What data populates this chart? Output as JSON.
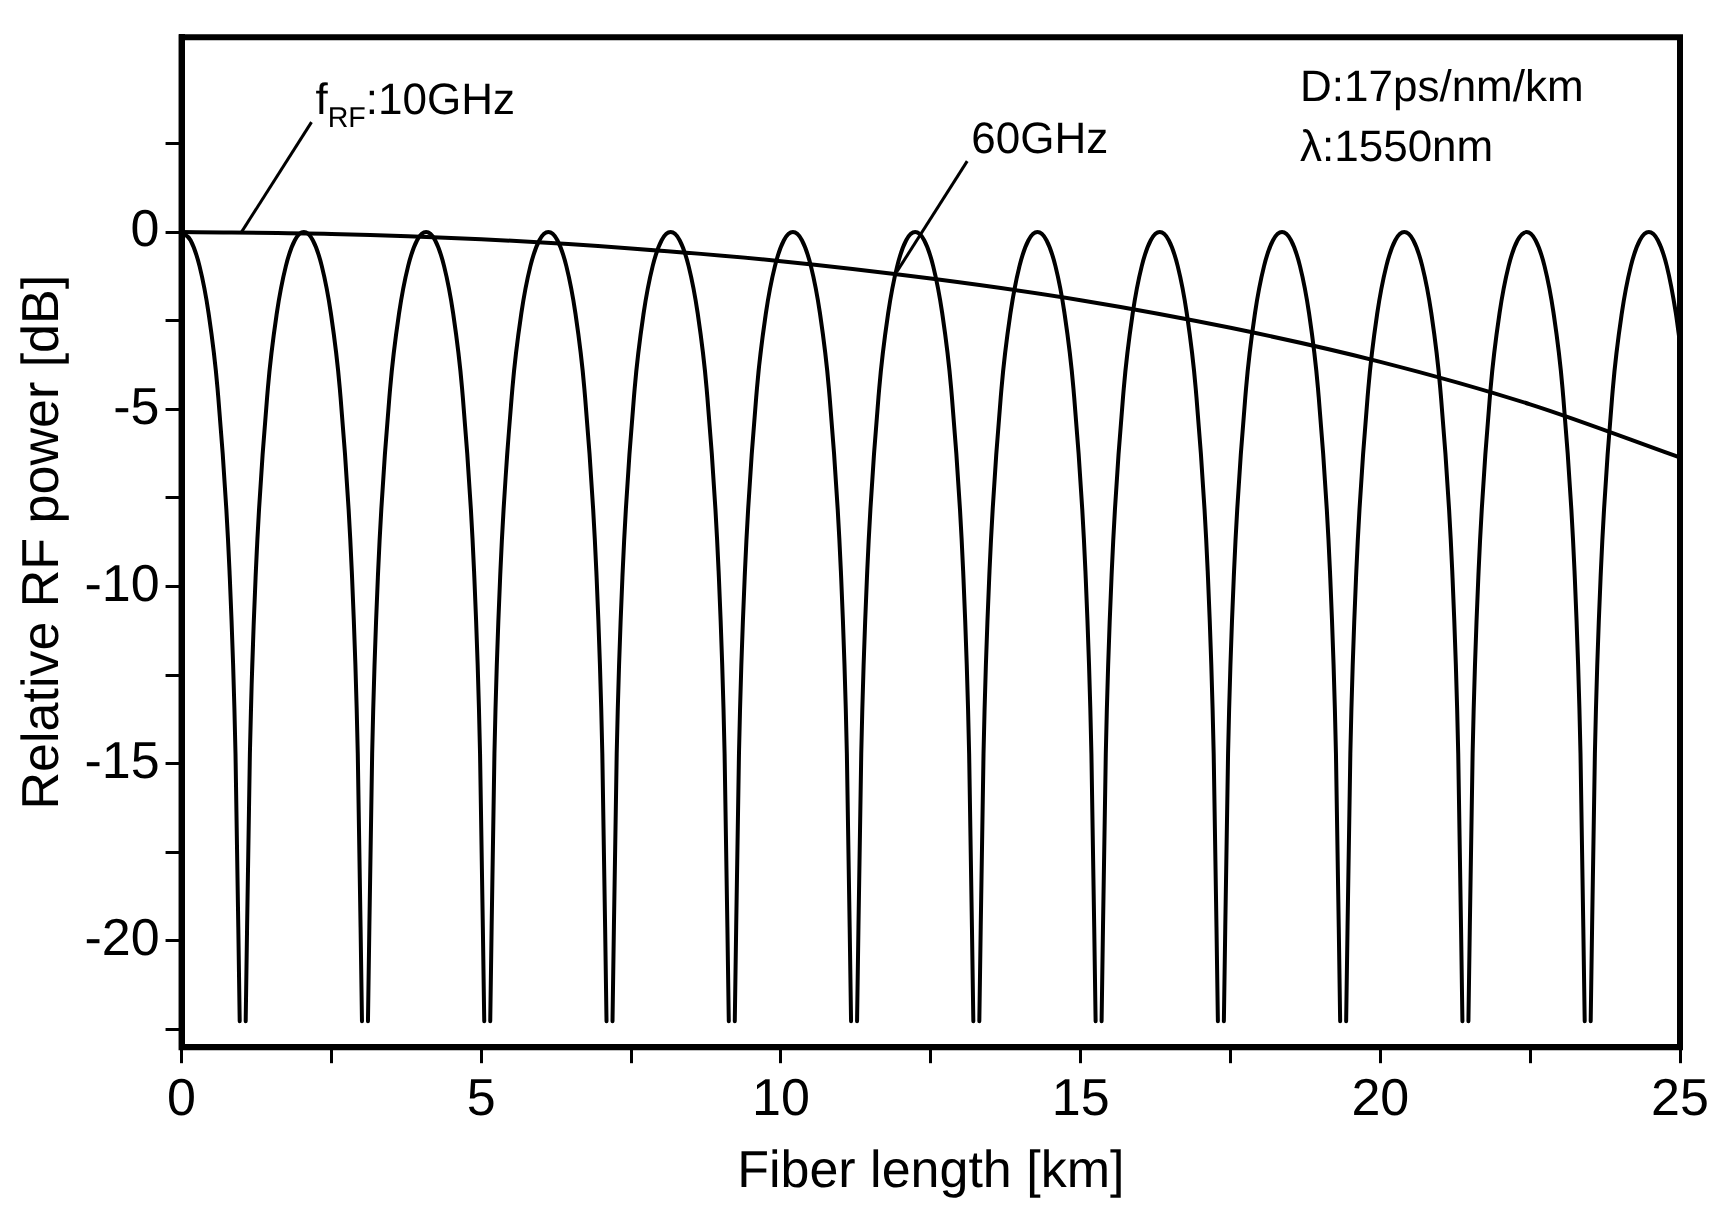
{
  "chart_data": {
    "type": "line",
    "xlabel": "Fiber length [km]",
    "ylabel": "Relative RF power [dB]",
    "xlim": [
      0,
      25
    ],
    "ylim": [
      -23,
      5.5
    ],
    "xticks": [
      0,
      {
        "value": 2.5,
        "label": null
      },
      5,
      {
        "value": 7.5,
        "label": null
      },
      10,
      {
        "value": 12.5,
        "label": null
      },
      15,
      {
        "value": 17.5,
        "label": null
      },
      20,
      {
        "value": 22.5,
        "label": null
      },
      25
    ],
    "yticks": [
      {
        "value": -22.5,
        "label": null
      },
      -20,
      {
        "value": -17.5,
        "label": null
      },
      -15,
      {
        "value": -12.5,
        "label": null
      },
      -10,
      {
        "value": -7.5,
        "label": null
      },
      -5,
      {
        "value": -2.5,
        "label": null
      },
      0,
      {
        "value": 2.5,
        "label": null
      }
    ],
    "marker": "none",
    "line_style": "solid",
    "grid": false,
    "legend": false,
    "series": [
      {
        "color": "#000000",
        "x": [
          0,
          2.5,
          5,
          7.5,
          10,
          12.5,
          15,
          17.5,
          20,
          22.5,
          25
        ],
        "values": [
          0,
          -0.05,
          -0.2,
          -0.46,
          -0.82,
          -1.31,
          -1.92,
          -2.7,
          -3.66,
          -4.86,
          -6.36
        ]
      },
      {
        "color": "#000000",
        "x": [
          0,
          0.15,
          0.3,
          0.45,
          0.6,
          0.8,
          0.9,
          0.97,
          1.02,
          1.07,
          1.14,
          1.24,
          1.44,
          1.59,
          1.74,
          1.89,
          2.04,
          2.19,
          2.34,
          2.49,
          2.64,
          2.84,
          2.94,
          3.01,
          3.06,
          3.11,
          3.18,
          3.28,
          3.48,
          3.63,
          3.78,
          3.93,
          4.08,
          4.23,
          4.38,
          4.53,
          4.68,
          4.88,
          4.98,
          5.05,
          5.1,
          5.15,
          5.22,
          5.32,
          5.52,
          5.67,
          5.82,
          5.97,
          6.12,
          6.27,
          6.42,
          6.57,
          6.72,
          6.92,
          7.02,
          7.09,
          7.14,
          7.19,
          7.26,
          7.36,
          7.56,
          7.71,
          7.86,
          8.01,
          8.16,
          8.31,
          8.46,
          8.61,
          8.76,
          8.96,
          9.06,
          9.13,
          9.18,
          9.23,
          9.3,
          9.4,
          9.6,
          9.75,
          9.9,
          10.05,
          10.2,
          10.35,
          10.5,
          10.65,
          10.8,
          11.0,
          11.1,
          11.17,
          11.22,
          11.27,
          11.34,
          11.44,
          11.64,
          11.79,
          11.94,
          12.09,
          12.24,
          12.39,
          12.54,
          12.69,
          12.84,
          13.04,
          13.14,
          13.21,
          13.26,
          13.31,
          13.38,
          13.48,
          13.68,
          13.83,
          13.98,
          14.13,
          14.28,
          14.43,
          14.58,
          14.73,
          14.88,
          15.08,
          15.18,
          15.25,
          15.3,
          15.35,
          15.42,
          15.52,
          15.72,
          15.87,
          16.02,
          16.17,
          16.32,
          16.47,
          16.62,
          16.77,
          16.92,
          17.12,
          17.22,
          17.29,
          17.34,
          17.39,
          17.46,
          17.56,
          17.76,
          17.91,
          18.06,
          18.21,
          18.36,
          18.51,
          18.66,
          18.81,
          18.96,
          19.16,
          19.26,
          19.33,
          19.38,
          19.43,
          19.5,
          19.6,
          19.8,
          19.95,
          20.1,
          20.25,
          20.4,
          20.55,
          20.7,
          20.85,
          21.0,
          21.2,
          21.3,
          21.37,
          21.42,
          21.47,
          21.54,
          21.64,
          21.84,
          21.99,
          22.14,
          22.29,
          22.44,
          22.59,
          22.74,
          22.89,
          23.04,
          23.24,
          23.34,
          23.41,
          23.46,
          23.51,
          23.58,
          23.68,
          23.88,
          24.03,
          24.18,
          24.33,
          24.48,
          24.63,
          24.78,
          24.93,
          25
        ],
        "values": [
          0,
          -0.23,
          -0.96,
          -2.28,
          -4.41,
          -9.56,
          -14.72,
          -22.27,
          null,
          -22.27,
          -14.72,
          -9.56,
          -4.41,
          -2.28,
          -0.96,
          -0.23,
          0,
          -0.23,
          -0.96,
          -2.28,
          -4.41,
          -9.56,
          -14.72,
          -22.27,
          null,
          -22.27,
          -14.72,
          -9.56,
          -4.41,
          -2.28,
          -0.96,
          -0.23,
          0,
          -0.23,
          -0.96,
          -2.28,
          -4.41,
          -9.56,
          -14.72,
          -22.27,
          null,
          -22.27,
          -14.72,
          -9.56,
          -4.41,
          -2.28,
          -0.96,
          -0.23,
          0,
          -0.23,
          -0.96,
          -2.28,
          -4.41,
          -9.56,
          -14.72,
          -22.27,
          null,
          -22.27,
          -14.72,
          -9.56,
          -4.41,
          -2.28,
          -0.96,
          -0.23,
          0,
          -0.23,
          -0.96,
          -2.28,
          -4.41,
          -9.56,
          -14.72,
          -22.27,
          null,
          -22.27,
          -14.72,
          -9.56,
          -4.41,
          -2.28,
          -0.96,
          -0.23,
          0,
          -0.23,
          -0.96,
          -2.28,
          -4.41,
          -9.56,
          -14.72,
          -22.27,
          null,
          -22.27,
          -14.72,
          -9.56,
          -4.41,
          -2.28,
          -0.96,
          -0.23,
          0,
          -0.23,
          -0.96,
          -2.28,
          -4.41,
          -9.56,
          -14.72,
          -22.27,
          null,
          -22.27,
          -14.72,
          -9.56,
          -4.41,
          -2.28,
          -0.96,
          -0.23,
          0,
          -0.23,
          -0.96,
          -2.28,
          -4.41,
          -9.56,
          -14.72,
          -22.27,
          null,
          -22.27,
          -14.72,
          -9.56,
          -4.41,
          -2.28,
          -0.96,
          -0.23,
          0,
          -0.23,
          -0.96,
          -2.28,
          -4.41,
          -9.56,
          -14.72,
          -22.27,
          null,
          -22.27,
          -14.72,
          -9.56,
          -4.41,
          -2.28,
          -0.96,
          -0.23,
          0,
          -0.23,
          -0.96,
          -2.28,
          -4.41,
          -9.56,
          -14.72,
          -22.27,
          null,
          -22.27,
          -14.72,
          -9.56,
          -4.41,
          -2.28,
          -0.96,
          -0.23,
          0,
          -0.23,
          -0.96,
          -2.28,
          -4.41,
          -9.56,
          -14.72,
          -22.27,
          null,
          -22.27,
          -14.72,
          -9.56,
          -4.41,
          -2.28,
          -0.96,
          -0.23,
          0,
          -0.23,
          -0.96,
          -2.28,
          -4.41,
          -9.56,
          -14.72,
          -22.27,
          null,
          -22.27,
          -14.72,
          -9.56,
          -4.41,
          -2.28,
          -0.96,
          -0.23,
          0,
          -0.23,
          -0.96,
          -2.28,
          -3.15
        ]
      }
    ],
    "annotations": [
      {
        "text": "f$_{RF}$:10GHz",
        "x": 1,
        "y": 0
      },
      {
        "text": "60GHz",
        "x": 11.94,
        "y": -1.1
      },
      "D:17ps/nm/km",
      "λ:1550nm"
    ]
  }
}
